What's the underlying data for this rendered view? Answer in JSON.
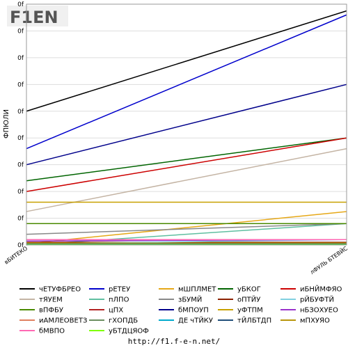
{
  "logo": {
    "text": "F1EN",
    "accent": "#f26522",
    "dark": "#555555"
  },
  "footer": {
    "url": "http://f1.f-e-n.net/"
  },
  "chart_data": {
    "type": "line",
    "title": "",
    "ylabel": "ФПЮЛИ",
    "xlabel": "",
    "categories": [
      "вБИТЕКО",
      "лФУЛЬ БТЕВЙС"
    ],
    "ylim": [
      0,
      9
    ],
    "yticks": [
      0,
      1,
      2,
      3,
      4,
      5,
      6,
      7,
      8,
      9
    ],
    "ytick_labels": [
      "0f",
      "0f",
      "0f",
      "0f",
      "0f",
      "0f",
      "0f",
      "0f",
      "0f",
      "0f"
    ],
    "grid": true,
    "legend_position": "bottom",
    "series": [
      {
        "name": "чЕТУФБРЕО",
        "color": "#000000",
        "values": [
          5.0,
          8.75
        ]
      },
      {
        "name": "рЕТЕУ",
        "color": "#0000cc",
        "values": [
          3.6,
          8.6
        ]
      },
      {
        "name": "мШПЛМЕТ",
        "color": "#e6a817",
        "values": [
          0.05,
          1.25
        ]
      },
      {
        "name": "уБКОГ",
        "color": "#006400",
        "values": [
          2.4,
          4.0
        ]
      },
      {
        "name": "иБНЙМФЯО",
        "color": "#cc0000",
        "values": [
          2.0,
          4.0
        ]
      },
      {
        "name": "тЯУЕМ",
        "color": "#c4b4a4",
        "values": [
          1.25,
          3.6
        ]
      },
      {
        "name": "пЛПО",
        "color": "#5fbfa0",
        "values": [
          0.0,
          0.8
        ]
      },
      {
        "name": "зБУМЙ",
        "color": "#888888",
        "values": [
          0.4,
          0.8
        ]
      },
      {
        "name": "оПТЙУ",
        "color": "#8b2000",
        "values": [
          0.1,
          0.1
        ]
      },
      {
        "name": "рЙБУФТЙ",
        "color": "#80d0e0",
        "values": [
          0.05,
          0.2
        ]
      },
      {
        "name": "вПФБУ",
        "color": "#4a8a00",
        "values": [
          0.8,
          0.8
        ]
      },
      {
        "name": "цПХ",
        "color": "#b22222",
        "values": [
          0.05,
          0.05
        ]
      },
      {
        "name": "бМПОУП",
        "color": "#00008b",
        "values": [
          3.0,
          6.0
        ]
      },
      {
        "name": "уФТПМ",
        "color": "#c8a000",
        "values": [
          1.6,
          1.6
        ]
      },
      {
        "name": "нБЗОХУЕО",
        "color": "#9932cc",
        "values": [
          0.15,
          0.2
        ]
      },
      {
        "name": "иАМЛЕОВЕТЗ",
        "color": "#e08060",
        "values": [
          0.02,
          0.02
        ]
      },
      {
        "name": "гХОПДБ",
        "color": "#6b8e60",
        "values": [
          0.03,
          0.03
        ]
      },
      {
        "name": "ДЕ чТЙКУ",
        "color": "#00aacc",
        "values": [
          0.04,
          0.04
        ]
      },
      {
        "name": "тЙЛБТДП",
        "color": "#1f4e79",
        "values": [
          0.06,
          0.06
        ]
      },
      {
        "name": "мПХУЯО",
        "color": "#b8960b",
        "values": [
          0.07,
          0.07
        ]
      },
      {
        "name": "бМВПО",
        "color": "#ff69b4",
        "values": [
          0.2,
          0.2
        ]
      },
      {
        "name": "уБТДЦЯОФ",
        "color": "#7fff00",
        "values": [
          0.01,
          0.01
        ]
      }
    ]
  }
}
